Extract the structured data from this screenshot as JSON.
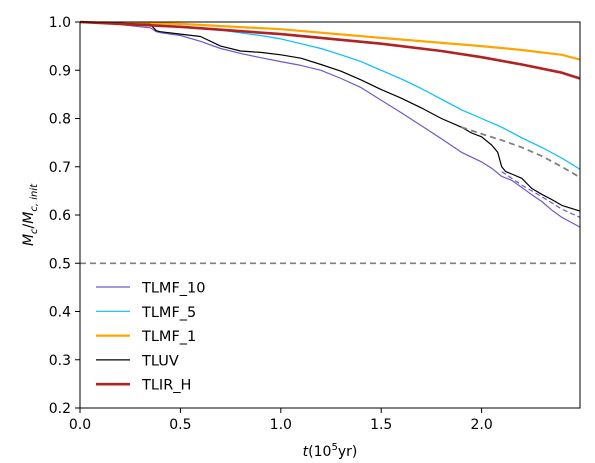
{
  "chart_data": {
    "type": "line",
    "title": "",
    "xlabel": "t(10⁵yr)",
    "ylabel": "Mc/Mc,init",
    "xlim": [
      0,
      2.49
    ],
    "ylim": [
      0.2,
      1.0
    ],
    "grid": false,
    "legend_position": "lower-left",
    "xticks": [
      0.0,
      0.5,
      1.0,
      1.5,
      2.0
    ],
    "xtick_labels": [
      "0.0",
      "0.5",
      "1.0",
      "1.5",
      "2.0"
    ],
    "yticks": [
      0.2,
      0.3,
      0.4,
      0.5,
      0.6,
      0.7,
      0.8,
      0.9,
      1.0
    ],
    "ytick_labels": [
      "0.2",
      "0.3",
      "0.4",
      "0.5",
      "0.6",
      "0.7",
      "0.8",
      "0.9",
      "1.0"
    ],
    "series": [
      {
        "name": "TLMF_10",
        "color": "#6a5acd",
        "width": 1.2,
        "dash": "",
        "x": [
          0,
          0.2,
          0.3,
          0.35,
          0.38,
          0.4,
          0.5,
          0.6,
          0.7,
          0.8,
          0.9,
          1.0,
          1.1,
          1.2,
          1.3,
          1.4,
          1.5,
          1.6,
          1.7,
          1.8,
          1.9,
          2.0,
          2.05,
          2.1,
          2.15,
          2.2,
          2.25,
          2.3,
          2.35,
          2.4,
          2.49
        ],
        "y": [
          1.0,
          0.995,
          0.99,
          0.988,
          0.98,
          0.978,
          0.972,
          0.96,
          0.945,
          0.935,
          0.926,
          0.918,
          0.91,
          0.9,
          0.883,
          0.864,
          0.838,
          0.812,
          0.785,
          0.758,
          0.73,
          0.71,
          0.697,
          0.68,
          0.672,
          0.657,
          0.642,
          0.628,
          0.61,
          0.595,
          0.575
        ]
      },
      {
        "name": "TLMF_5",
        "color": "#00bfff",
        "width": 1.2,
        "dash": "",
        "x": [
          0,
          0.3,
          0.5,
          0.7,
          0.9,
          1.0,
          1.1,
          1.2,
          1.3,
          1.4,
          1.5,
          1.6,
          1.7,
          1.8,
          1.9,
          2.0,
          2.1,
          2.2,
          2.3,
          2.4,
          2.49
        ],
        "y": [
          1.0,
          0.995,
          0.99,
          0.983,
          0.972,
          0.965,
          0.955,
          0.945,
          0.932,
          0.918,
          0.9,
          0.882,
          0.862,
          0.84,
          0.818,
          0.8,
          0.782,
          0.76,
          0.74,
          0.718,
          0.695
        ]
      },
      {
        "name": "TLMF_1",
        "color": "#ffa500",
        "width": 2.2,
        "dash": "",
        "x": [
          0,
          0.5,
          1.0,
          1.5,
          2.0,
          2.2,
          2.4,
          2.49
        ],
        "y": [
          1.0,
          0.996,
          0.985,
          0.967,
          0.95,
          0.942,
          0.932,
          0.922
        ]
      },
      {
        "name": "TLUV",
        "color": "#000000",
        "width": 1.2,
        "dash": "",
        "x": [
          0,
          0.2,
          0.35,
          0.38,
          0.4,
          0.5,
          0.6,
          0.7,
          0.8,
          0.9,
          1.0,
          1.1,
          1.2,
          1.3,
          1.4,
          1.5,
          1.6,
          1.7,
          1.8,
          1.9,
          1.95,
          2.0,
          2.05,
          2.08,
          2.1,
          2.12,
          2.15,
          2.2,
          2.25,
          2.3,
          2.35,
          2.4,
          2.49
        ],
        "y": [
          1.0,
          0.997,
          0.995,
          0.982,
          0.98,
          0.975,
          0.97,
          0.95,
          0.94,
          0.937,
          0.932,
          0.925,
          0.912,
          0.898,
          0.88,
          0.86,
          0.842,
          0.822,
          0.8,
          0.782,
          0.77,
          0.762,
          0.745,
          0.73,
          0.7,
          0.69,
          0.685,
          0.676,
          0.655,
          0.643,
          0.632,
          0.62,
          0.608
        ]
      },
      {
        "name": "TLIR_H",
        "color": "#b22222",
        "width": 2.6,
        "dash": "",
        "x": [
          0,
          0.5,
          1.0,
          1.5,
          1.8,
          2.0,
          2.2,
          2.4,
          2.49
        ],
        "y": [
          1.0,
          0.99,
          0.975,
          0.955,
          0.94,
          0.927,
          0.912,
          0.895,
          0.883
        ]
      },
      {
        "name": "",
        "color": "#808080",
        "width": 1.8,
        "dash": "6,4",
        "x": [
          1.9,
          2.0,
          2.1,
          2.2,
          2.3,
          2.4,
          2.49
        ],
        "y": [
          0.782,
          0.768,
          0.755,
          0.74,
          0.722,
          0.7,
          0.678
        ]
      },
      {
        "name": "",
        "color": "#6a5acd",
        "width": 1.2,
        "dash": "5,3",
        "x": [
          2.1,
          2.2,
          2.3,
          2.4,
          2.49
        ],
        "y": [
          0.69,
          0.662,
          0.638,
          0.612,
          0.595
        ]
      },
      {
        "name": "",
        "color": "#808080",
        "width": 1.6,
        "dash": "6,4",
        "x": [
          0,
          2.49
        ],
        "y": [
          0.5,
          0.5
        ]
      }
    ]
  }
}
